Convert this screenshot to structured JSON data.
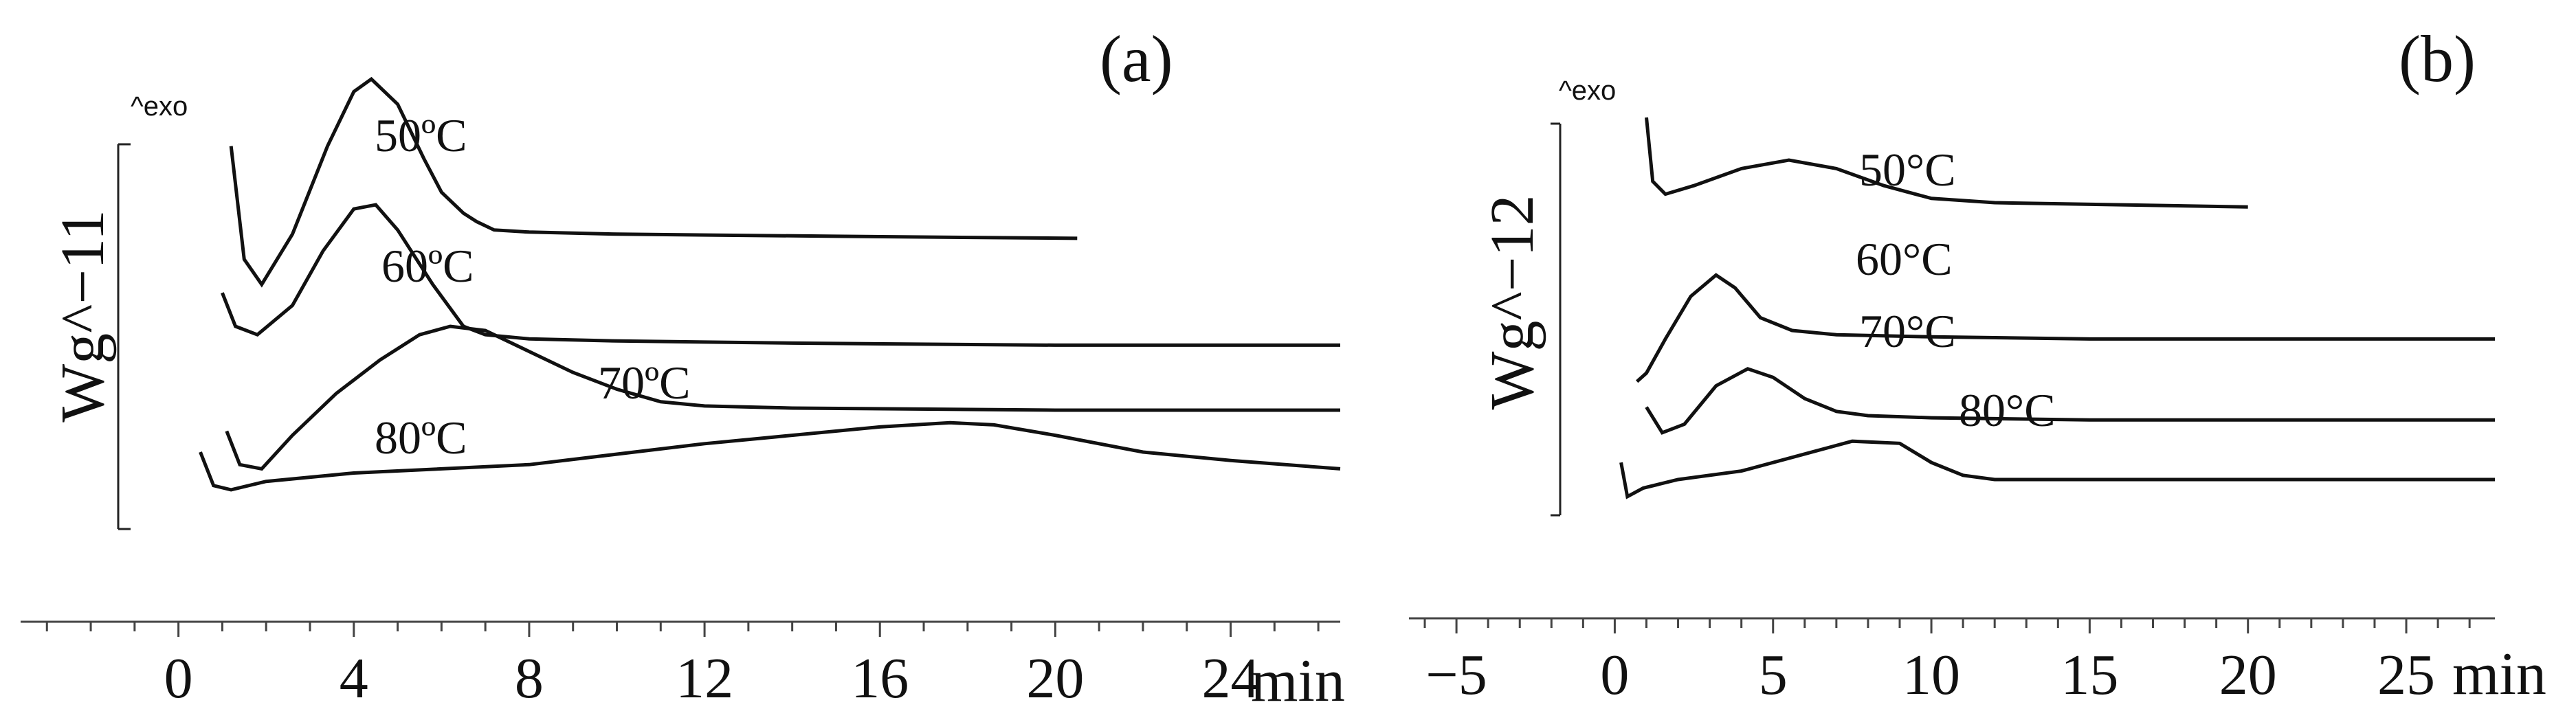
{
  "chart_data": [
    {
      "type": "line",
      "panel_label": "(a)",
      "exo_label": "^exo",
      "ylabel": "Wg^−11",
      "xunit": "min",
      "xlim": [
        -3.6,
        26.5
      ],
      "xticks": [
        0,
        4,
        8,
        12,
        16,
        20,
        24
      ],
      "xtick_labels": [
        "0",
        "4",
        "8",
        "12",
        "16",
        "20",
        "24"
      ],
      "xminor_step": 1,
      "series": [
        {
          "name": "50ºC",
          "points": [
            [
              1.2,
              0.93
            ],
            [
              1.5,
              0.66
            ],
            [
              1.9,
              0.6
            ],
            [
              2.6,
              0.72
            ],
            [
              3.4,
              0.93
            ],
            [
              4.0,
              1.06
            ],
            [
              4.4,
              1.09
            ],
            [
              5.0,
              1.03
            ],
            [
              5.6,
              0.9
            ],
            [
              6.0,
              0.82
            ],
            [
              6.3,
              0.79
            ],
            [
              6.5,
              0.77
            ],
            [
              6.8,
              0.75
            ],
            [
              7.2,
              0.73
            ],
            [
              8.0,
              0.725
            ],
            [
              10,
              0.72
            ],
            [
              15,
              0.715
            ],
            [
              20.5,
              0.71
            ]
          ]
        },
        {
          "name": "60ºC",
          "points": [
            [
              1.0,
              0.58
            ],
            [
              1.3,
              0.5
            ],
            [
              1.8,
              0.48
            ],
            [
              2.6,
              0.55
            ],
            [
              3.3,
              0.68
            ],
            [
              4.0,
              0.78
            ],
            [
              4.5,
              0.79
            ],
            [
              5.0,
              0.73
            ],
            [
              5.8,
              0.6
            ],
            [
              6.5,
              0.5
            ],
            [
              7.0,
              0.48
            ],
            [
              8.0,
              0.47
            ],
            [
              10,
              0.465
            ],
            [
              14,
              0.46
            ],
            [
              20,
              0.455
            ],
            [
              26.5,
              0.455
            ]
          ]
        },
        {
          "name": "70ºC",
          "points": [
            [
              1.1,
              0.25
            ],
            [
              1.4,
              0.17
            ],
            [
              1.9,
              0.16
            ],
            [
              2.6,
              0.24
            ],
            [
              3.6,
              0.34
            ],
            [
              4.6,
              0.42
            ],
            [
              5.5,
              0.48
            ],
            [
              6.2,
              0.5
            ],
            [
              7.0,
              0.49
            ],
            [
              8.0,
              0.44
            ],
            [
              9.0,
              0.39
            ],
            [
              10.0,
              0.35
            ],
            [
              11.0,
              0.32
            ],
            [
              12.0,
              0.31
            ],
            [
              14,
              0.305
            ],
            [
              20,
              0.3
            ],
            [
              26.5,
              0.3
            ]
          ]
        },
        {
          "name": "80ºC",
          "points": [
            [
              0.5,
              0.2
            ],
            [
              0.8,
              0.12
            ],
            [
              1.2,
              0.11
            ],
            [
              2.0,
              0.13
            ],
            [
              4.0,
              0.15
            ],
            [
              8.0,
              0.17
            ],
            [
              12.0,
              0.22
            ],
            [
              16.0,
              0.26
            ],
            [
              17.6,
              0.27
            ],
            [
              18.6,
              0.265
            ],
            [
              20.0,
              0.24
            ],
            [
              22.0,
              0.2
            ],
            [
              24.0,
              0.18
            ],
            [
              26.5,
              0.16
            ]
          ]
        }
      ]
    },
    {
      "type": "line",
      "panel_label": "(b)",
      "exo_label": "^exo",
      "ylabel": "Wg^−12",
      "xunit": "min",
      "xlim": [
        -6.5,
        27.8
      ],
      "xticks": [
        -5,
        0,
        5,
        10,
        15,
        20,
        25
      ],
      "xtick_labels": [
        "−5",
        "0",
        "5",
        "10",
        "15",
        "20",
        "25"
      ],
      "xminor_step": 1,
      "series": [
        {
          "name": "50°C",
          "points": [
            [
              1.0,
              0.95
            ],
            [
              1.2,
              0.8
            ],
            [
              1.6,
              0.77
            ],
            [
              2.5,
              0.79
            ],
            [
              4.0,
              0.83
            ],
            [
              5.5,
              0.85
            ],
            [
              7.0,
              0.83
            ],
            [
              8.5,
              0.79
            ],
            [
              10.0,
              0.76
            ],
            [
              12,
              0.75
            ],
            [
              16,
              0.745
            ],
            [
              20.0,
              0.74
            ]
          ]
        },
        {
          "name": "60°C",
          "points": [
            [
              0.7,
              0.33
            ],
            [
              1.0,
              0.35
            ],
            [
              1.6,
              0.43
            ],
            [
              2.4,
              0.53
            ],
            [
              3.2,
              0.58
            ],
            [
              3.8,
              0.55
            ],
            [
              4.6,
              0.48
            ],
            [
              5.6,
              0.45
            ],
            [
              7.0,
              0.44
            ],
            [
              10,
              0.435
            ],
            [
              15,
              0.43
            ],
            [
              20,
              0.43
            ],
            [
              27.8,
              0.43
            ]
          ]
        },
        {
          "name": "70°C",
          "points": [
            [
              1.0,
              0.27
            ],
            [
              1.5,
              0.21
            ],
            [
              2.2,
              0.23
            ],
            [
              3.2,
              0.32
            ],
            [
              4.2,
              0.36
            ],
            [
              5.0,
              0.34
            ],
            [
              6.0,
              0.29
            ],
            [
              7.0,
              0.26
            ],
            [
              8.0,
              0.25
            ],
            [
              10,
              0.245
            ],
            [
              15,
              0.24
            ],
            [
              20,
              0.24
            ],
            [
              27.8,
              0.24
            ]
          ]
        },
        {
          "name": "80°C",
          "points": [
            [
              0.2,
              0.14
            ],
            [
              0.4,
              0.06
            ],
            [
              0.9,
              0.08
            ],
            [
              2.0,
              0.1
            ],
            [
              4.0,
              0.12
            ],
            [
              6.0,
              0.16
            ],
            [
              7.5,
              0.19
            ],
            [
              9.0,
              0.185
            ],
            [
              10.0,
              0.14
            ],
            [
              11.0,
              0.11
            ],
            [
              12.0,
              0.1
            ],
            [
              15,
              0.1
            ],
            [
              20,
              0.1
            ],
            [
              27.8,
              0.1
            ]
          ]
        }
      ]
    }
  ]
}
